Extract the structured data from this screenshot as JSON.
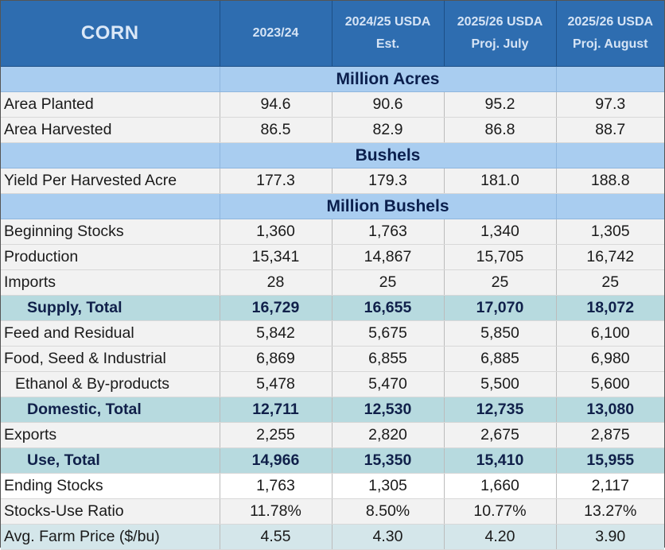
{
  "header": {
    "title": "CORN",
    "columns": [
      {
        "line1": "2023/24",
        "line2": ""
      },
      {
        "line1": "2024/25 USDA",
        "line2": "Est."
      },
      {
        "line1": "2025/26 USDA",
        "line2": "Proj. July"
      },
      {
        "line1": "2025/26 USDA",
        "line2": "Proj. August"
      }
    ]
  },
  "sections": {
    "acres": "Million Acres",
    "bushels": "Bushels",
    "million_bushels": "Million Bushels"
  },
  "rows": {
    "area_planted": {
      "label": "Area Planted",
      "values": [
        "94.6",
        "90.6",
        "95.2",
        "97.3"
      ]
    },
    "area_harvested": {
      "label": "Area Harvested",
      "values": [
        "86.5",
        "82.9",
        "86.8",
        "88.7"
      ]
    },
    "yield": {
      "label": "Yield Per Harvested Acre",
      "values": [
        "177.3",
        "179.3",
        "181.0",
        "188.8"
      ]
    },
    "beginning_stocks": {
      "label": "Beginning Stocks",
      "values": [
        "1,360",
        "1,763",
        "1,340",
        "1,305"
      ]
    },
    "production": {
      "label": "Production",
      "values": [
        "15,341",
        "14,867",
        "15,705",
        "16,742"
      ]
    },
    "imports": {
      "label": "Imports",
      "values": [
        "28",
        "25",
        "25",
        "25"
      ]
    },
    "supply_total": {
      "label": "Supply, Total",
      "values": [
        "16,729",
        "16,655",
        "17,070",
        "18,072"
      ]
    },
    "feed_residual": {
      "label": "Feed and Residual",
      "values": [
        "5,842",
        "5,675",
        "5,850",
        "6,100"
      ]
    },
    "food_seed_ind": {
      "label": "Food, Seed & Industrial",
      "values": [
        "6,869",
        "6,855",
        "6,885",
        "6,980"
      ]
    },
    "ethanol": {
      "label": "Ethanol & By-products",
      "values": [
        "5,478",
        "5,470",
        "5,500",
        "5,600"
      ]
    },
    "domestic_total": {
      "label": "Domestic, Total",
      "values": [
        "12,711",
        "12,530",
        "12,735",
        "13,080"
      ]
    },
    "exports": {
      "label": "Exports",
      "values": [
        "2,255",
        "2,820",
        "2,675",
        "2,875"
      ]
    },
    "use_total": {
      "label": "Use, Total",
      "values": [
        "14,966",
        "15,350",
        "15,410",
        "15,955"
      ]
    },
    "ending_stocks": {
      "label": "Ending Stocks",
      "values": [
        "1,763",
        "1,305",
        "1,660",
        "2,117"
      ]
    },
    "stocks_use": {
      "label": "Stocks-Use Ratio",
      "values": [
        "11.78%",
        "8.50%",
        "10.77%",
        "13.27%"
      ]
    },
    "farm_price": {
      "label": "Avg. Farm Price ($/bu)",
      "values": [
        "4.55",
        "4.30",
        "4.20",
        "3.90"
      ]
    }
  },
  "colors": {
    "header_bg": "#2e6db0",
    "unit_band": "#a9cdf0",
    "total_band": "#b7dadf",
    "stripe": "#f2f2f2"
  }
}
